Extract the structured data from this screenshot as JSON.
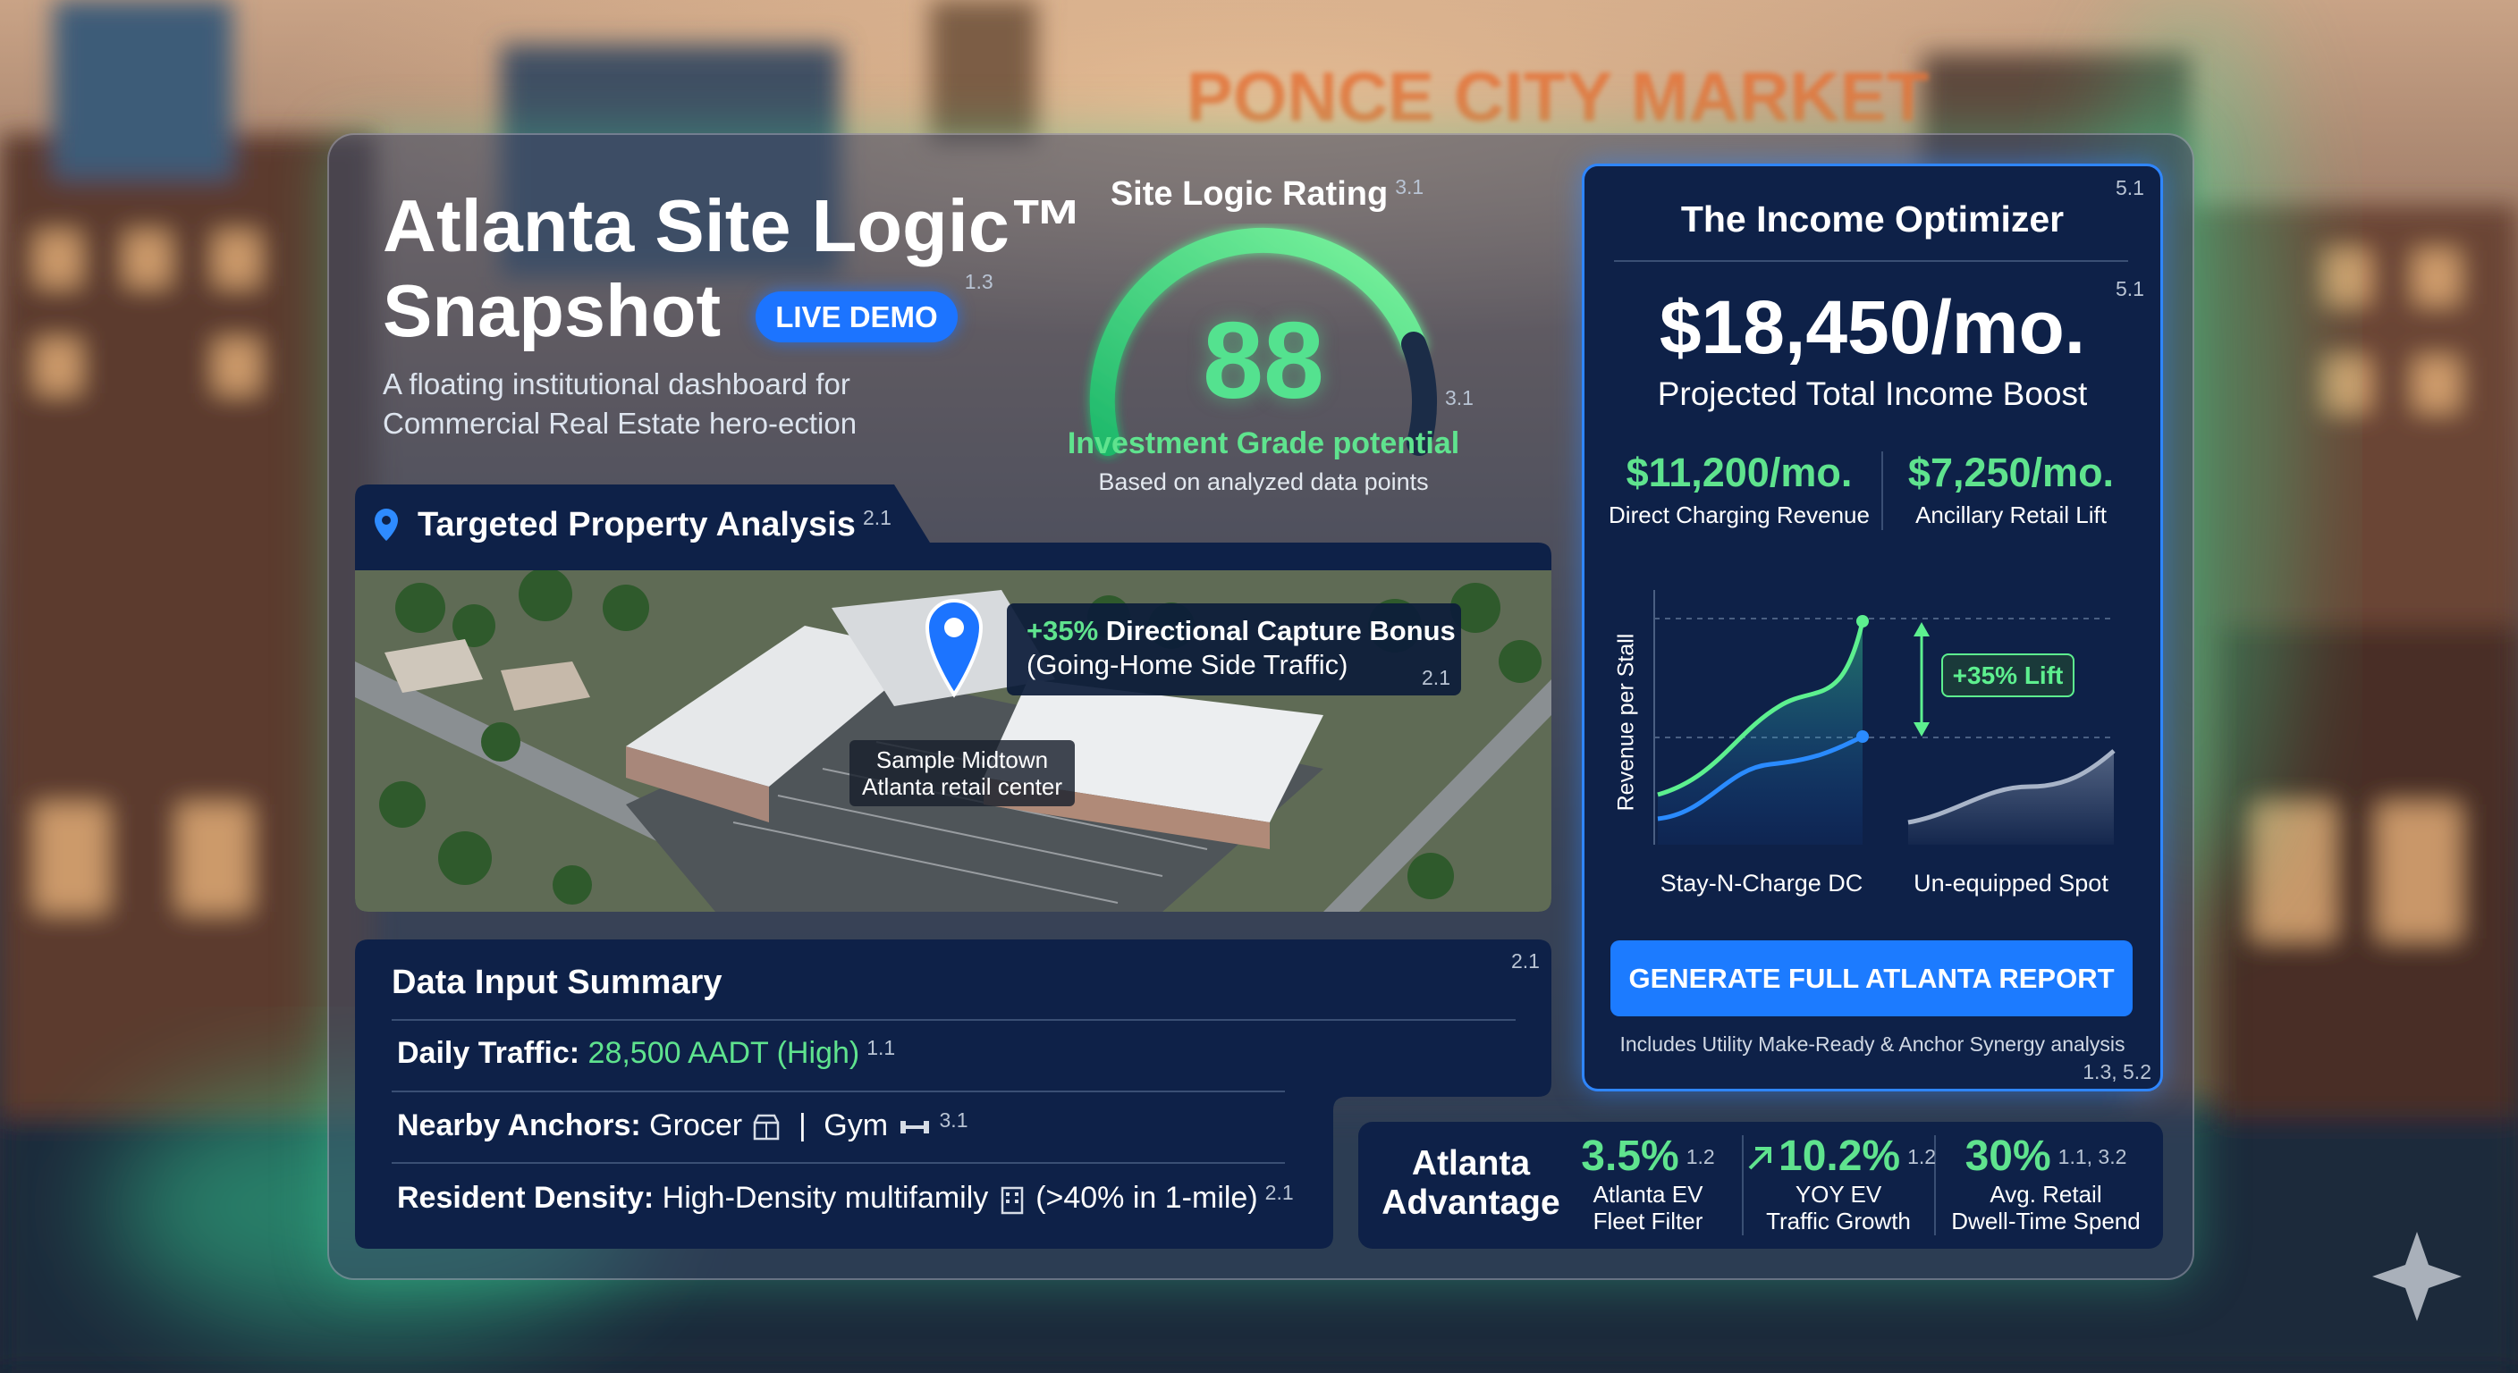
{
  "background": {
    "sign": "PONCE CITY MARKET"
  },
  "header": {
    "title_line1": "Atlanta Site Logic™",
    "title_line2": "Snapshot",
    "badge": "LIVE DEMO",
    "badge_ref": "1.3",
    "subtitle_line1": "A floating institutional dashboard for",
    "subtitle_line2": "Commercial Real Estate hero-ection"
  },
  "rating": {
    "title": "Site Logic Rating",
    "title_ref": "3.1",
    "score": "88",
    "score_ref": "3.1",
    "grade": "Investment Grade potential",
    "note": "Based on analyzed data points"
  },
  "property": {
    "title": "Targeted Property Analysis",
    "title_ref": "2.1",
    "callout_highlight": "+35%",
    "callout_title": "Directional Capture Bonus",
    "callout_sub": "(Going-Home Side Traffic)",
    "callout_ref": "2.1",
    "caption_line1": "Sample Midtown",
    "caption_line2": "Atlanta retail center"
  },
  "inputs": {
    "title": "Data Input Summary",
    "title_ref": "2.1",
    "rows": [
      {
        "label": "Daily Traffic:",
        "items": [
          "28,500 AADT (High)"
        ],
        "ref": "1.1"
      },
      {
        "label": "Nearby Anchors:",
        "items": [
          "Grocer",
          "|",
          "Gym"
        ],
        "ref": "3.1"
      },
      {
        "label": "Resident Density:",
        "items": [
          "High-Density multifamily",
          "(>40% in 1-mile)"
        ],
        "ref": "2.1"
      }
    ]
  },
  "optimizer": {
    "title": "The Income Optimizer",
    "title_ref": "5.1",
    "total": "$18,450/mo.",
    "total_ref": "5.1",
    "total_label": "Projected Total Income Boost",
    "metrics": [
      {
        "value": "$11,200/mo.",
        "label": "Direct Charging Revenue"
      },
      {
        "value": "$7,250/mo.",
        "label": "Ancillary Retail Lift"
      }
    ],
    "chart": {
      "y_label": "Revenue per Stall",
      "lift": "+35% Lift",
      "categories": [
        "Stay-N-Charge DC",
        "Un-equipped Spot"
      ]
    },
    "button": "GENERATE FULL ATLANTA REPORT",
    "footnote": "Includes Utility Make-Ready & Anchor Synergy analysis",
    "footnote_ref": "1.3, 5.2"
  },
  "advantage": {
    "title_line1": "Atlanta",
    "title_line2": "Advantage",
    "stats": [
      {
        "value": "3.5%",
        "ref": "1.2",
        "label_line1": "Atlanta EV",
        "label_line2": "Fleet Filter"
      },
      {
        "value": "10.2%",
        "ref": "1.2",
        "label_line1": "YOY EV",
        "label_line2": "Traffic Growth"
      },
      {
        "value": "30%",
        "ref": "1.1, 3.2",
        "label_line1": "Avg. Retail",
        "label_line2": "Dwell-Time Spend"
      }
    ]
  }
}
